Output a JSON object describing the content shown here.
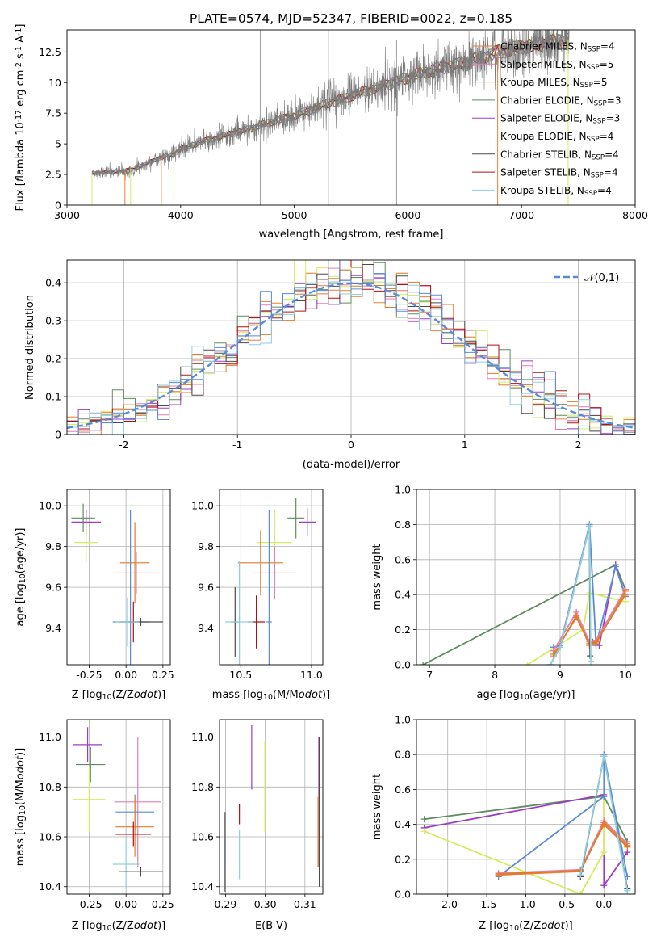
{
  "colors": {
    "chabrier_miles": "#ee7f33",
    "salpeter_miles": "#e47fb3",
    "kroupa_miles": "#de7c2a",
    "chabrier_elodie": "#5e8c5f",
    "salpeter_elodie": "#9a3cc4",
    "kroupa_elodie": "#d4ec5f",
    "chabrier_stelib": "#4a4a4a",
    "salpeter_stelib": "#b01010",
    "kroupa_stelib": "#8fcfe0",
    "blue": "#5b8ad6",
    "grid": "#b0b0b0"
  },
  "chart_data": [
    {
      "id": "spectrum",
      "type": "line",
      "title": "PLATE=0574, MJD=52347, FIBERID=0022, z=0.185",
      "xlabel": "wavelength [Angstrom, rest frame]",
      "ylabel": "Flux [$f_\\lambda 10^{-17}$ erg cm$^{-2}$ s$^{-1}$ A$^{-1}$]",
      "xlim": [
        3000,
        8000
      ],
      "ylim": [
        0,
        14.3
      ],
      "xticks": [
        3000,
        4000,
        5000,
        6000,
        7000,
        8000
      ],
      "yticks": [
        0.0,
        2.5,
        5.0,
        7.5,
        10.0,
        12.5
      ],
      "legend_position": "top-right",
      "observed_range": [
        3220,
        7420
      ],
      "continuum_points": [
        [
          3220,
          2.6
        ],
        [
          3500,
          2.8
        ],
        [
          3600,
          3.0
        ],
        [
          3800,
          3.8
        ],
        [
          3950,
          4.2
        ],
        [
          4000,
          4.6
        ],
        [
          4200,
          5.2
        ],
        [
          4400,
          5.7
        ],
        [
          4600,
          6.2
        ],
        [
          4800,
          6.8
        ],
        [
          5000,
          7.3
        ],
        [
          5200,
          8.0
        ],
        [
          5400,
          8.6
        ],
        [
          5600,
          9.2
        ],
        [
          5800,
          9.8
        ],
        [
          6000,
          10.4
        ],
        [
          6200,
          11.0
        ],
        [
          6500,
          11.6
        ],
        [
          6800,
          12.5
        ],
        [
          7000,
          12.9
        ],
        [
          7200,
          13.2
        ],
        [
          7420,
          13.5
        ]
      ],
      "series": [
        {
          "name": "Chabrier MILES, N$_{SSP}$=4",
          "color": "#ee7f33"
        },
        {
          "name": "Salpeter MILES, N$_{SSP}$=5",
          "color": "#e47fb3"
        },
        {
          "name": "Kroupa MILES, N$_{SSP}$=5",
          "color": "#de7c2a"
        },
        {
          "name": "Chabrier ELODIE, N$_{SSP}$=3",
          "color": "#5e8c5f"
        },
        {
          "name": "Salpeter ELODIE, N$_{SSP}$=3",
          "color": "#9a3cc4"
        },
        {
          "name": "Kroupa ELODIE, N$_{SSP}$=4",
          "color": "#d4ec5f"
        },
        {
          "name": "Chabrier STELIB, N$_{SSP}$=4",
          "color": "#4a4a4a"
        },
        {
          "name": "Salpeter STELIB, N$_{SSP}$=4",
          "color": "#b01010"
        },
        {
          "name": "Kroupa STELIB, N$_{SSP}$=4",
          "color": "#8fcfe0"
        }
      ]
    },
    {
      "id": "residuals",
      "type": "line",
      "xlabel": "(data-model)/error",
      "ylabel": "Normed distribution",
      "xlim": [
        -2.5,
        2.5
      ],
      "ylim": [
        0,
        0.46
      ],
      "xticks": [
        -2,
        -1,
        0,
        1,
        2
      ],
      "yticks": [
        0.0,
        0.1,
        0.2,
        0.3,
        0.4
      ],
      "legend_position": "top-right",
      "gaussian_label": "$\\mathcal{N}(0,1)$",
      "bin_width": 0.1,
      "histogram_series": 9
    },
    {
      "id": "z_age",
      "type": "scatter",
      "xlabel": "Z [log$_{10}$(Z/Z$_\\odot$)]",
      "ylabel": "age  [log$_{10}$(age/yr)]",
      "xlim": [
        -0.4,
        0.3
      ],
      "ylim": [
        9.22,
        10.08
      ],
      "xticks": [
        "-0.25",
        "0.00",
        "0.25"
      ],
      "yticks": [
        "9.4",
        "9.6",
        "9.8",
        "10.0"
      ],
      "points": [
        {
          "x": -0.29,
          "xerr": 0.08,
          "y": 9.94,
          "yerr": 0.07,
          "color": "#5e8c5f"
        },
        {
          "x": -0.27,
          "xerr": 0.1,
          "y": 9.92,
          "yerr": 0.06,
          "color": "#9a3cc4"
        },
        {
          "x": -0.27,
          "xerr": 0.08,
          "y": 9.82,
          "yerr": 0.1,
          "color": "#d4ec5f"
        },
        {
          "x": 0.06,
          "xerr": 0.1,
          "y": 9.72,
          "yerr": 0.2,
          "color": "#de7c2a"
        },
        {
          "x": 0.07,
          "xerr": 0.15,
          "y": 9.67,
          "yerr": 0.1,
          "color": "#e47fb3"
        },
        {
          "x": 0.03,
          "xerr": 0.12,
          "y": 9.43,
          "yerr": 0.55,
          "color": "#5b8ad6"
        },
        {
          "x": 0.1,
          "xerr": 0.15,
          "y": 9.43,
          "yerr": 0.02,
          "color": "#4a4a4a"
        },
        {
          "x": 0.05,
          "xerr": 0.04,
          "y": 9.43,
          "yerr": 0.1,
          "color": "#b01010"
        },
        {
          "x": 0.01,
          "xerr": 0.08,
          "y": 9.43,
          "yerr": 0.12,
          "color": "#8fcfe0"
        }
      ]
    },
    {
      "id": "mass_age",
      "type": "scatter",
      "xlabel": "mass [log$_{10}$(M/M$_\\odot$)]",
      "ylabel": "",
      "xlim": [
        10.35,
        11.08
      ],
      "ylim": [
        9.22,
        10.08
      ],
      "xticks": [
        "10.5",
        "11.0"
      ],
      "yticks": [
        "9.4",
        "9.6",
        "9.8",
        "10.0"
      ],
      "points": [
        {
          "x": 10.89,
          "xerr": 0.06,
          "y": 9.94,
          "yerr": 0.1,
          "color": "#5e8c5f"
        },
        {
          "x": 10.97,
          "xerr": 0.06,
          "y": 9.92,
          "yerr": 0.07,
          "color": "#9a3cc4"
        },
        {
          "x": 10.74,
          "xerr": 0.12,
          "y": 9.82,
          "yerr": 0.16,
          "color": "#d4ec5f"
        },
        {
          "x": 10.64,
          "xerr": 0.16,
          "y": 9.72,
          "yerr": 0.16,
          "color": "#de7c2a"
        },
        {
          "x": 10.74,
          "xerr": 0.15,
          "y": 9.67,
          "yerr": 0.13,
          "color": "#e47fb3"
        },
        {
          "x": 10.7,
          "xerr": 0.02,
          "y": 9.43,
          "yerr": 0.55,
          "color": "#5b8ad6"
        },
        {
          "x": 10.46,
          "xerr": 0.03,
          "y": 9.43,
          "yerr": 0.17,
          "color": "#4a4a4a"
        },
        {
          "x": 10.61,
          "xerr": 0.06,
          "y": 9.43,
          "yerr": 0.13,
          "color": "#b01010"
        },
        {
          "x": 10.49,
          "xerr": 0.1,
          "y": 9.43,
          "yerr": 0.3,
          "color": "#8fcfe0"
        }
      ]
    },
    {
      "id": "age_weight",
      "type": "line",
      "xlabel": "age  [log$_{10}$(age/yr)]",
      "ylabel": "mass weight",
      "xlim": [
        6.8,
        10.15
      ],
      "ylim": [
        0,
        1.0
      ],
      "xticks": [
        "7",
        "8",
        "9",
        "10"
      ],
      "yticks": [
        "0.0",
        "0.2",
        "0.4",
        "0.6",
        "0.8",
        "1.0"
      ],
      "series": [
        {
          "color": "#5e8c5f",
          "x": [
            6.9,
            9.85,
            10.0
          ],
          "y": [
            0.0,
            0.57,
            0.43
          ]
        },
        {
          "color": "#d4ec5f",
          "x": [
            8.5,
            9.35,
            9.45,
            10.0
          ],
          "y": [
            0.0,
            0.2,
            0.41,
            0.36
          ]
        },
        {
          "color": "#9a3cc4",
          "x": [
            9.5,
            9.6,
            9.85,
            10.0
          ],
          "y": [
            0.13,
            0.11,
            0.57,
            0.39
          ]
        },
        {
          "color": "#5b8ad6",
          "x": [
            8.9,
            9.0,
            9.45,
            9.55,
            9.85,
            10.0
          ],
          "y": [
            0.1,
            0.11,
            0.8,
            0.11,
            0.56,
            0.39
          ]
        },
        {
          "color": "#e47fb3",
          "x": [
            8.9,
            9.25,
            9.45,
            9.55,
            10.0
          ],
          "y": [
            0.08,
            0.3,
            0.13,
            0.14,
            0.43
          ]
        },
        {
          "color": "#ee7f33",
          "x": [
            8.9,
            9.25,
            9.45,
            9.55,
            10.0
          ],
          "y": [
            0.05,
            0.28,
            0.11,
            0.12,
            0.42
          ]
        },
        {
          "color": "#de7c2a",
          "x": [
            8.9,
            9.25,
            9.45,
            9.55,
            10.0
          ],
          "y": [
            0.06,
            0.27,
            0.12,
            0.13,
            0.4
          ]
        },
        {
          "color": "#4a4a4a",
          "x": [
            8.85,
            9.0,
            9.45,
            9.46
          ],
          "y": [
            0.0,
            0.1,
            0.79,
            0.05
          ]
        },
        {
          "color": "#8fcfe0",
          "x": [
            8.85,
            9.0,
            9.45,
            9.47
          ],
          "y": [
            0.0,
            0.1,
            0.79,
            0.02
          ]
        }
      ]
    },
    {
      "id": "z_mass",
      "type": "scatter",
      "xlabel": "Z [log$_{10}$(Z/Z$_\\odot$)]",
      "ylabel": "mass [log$_{10}$(M/M$_\\odot$)]",
      "xlim": [
        -0.4,
        0.3
      ],
      "ylim": [
        10.37,
        11.07
      ],
      "xticks": [
        "-0.25",
        "0.00",
        "0.25"
      ],
      "yticks": [
        "10.4",
        "10.6",
        "10.8",
        "11.0"
      ],
      "points": [
        {
          "x": -0.26,
          "xerr": 0.1,
          "y": 10.97,
          "yerr": 0.07,
          "color": "#9a3cc4"
        },
        {
          "x": -0.24,
          "xerr": 0.1,
          "y": 10.89,
          "yerr": 0.07,
          "color": "#5e8c5f"
        },
        {
          "x": -0.25,
          "xerr": 0.11,
          "y": 10.75,
          "yerr": 0.13,
          "color": "#d4ec5f"
        },
        {
          "x": 0.08,
          "xerr": 0.16,
          "y": 10.74,
          "yerr": 0.26,
          "color": "#e47fb3"
        },
        {
          "x": 0.06,
          "xerr": 0.13,
          "y": 10.7,
          "yerr": 0.07,
          "color": "#5b8ad6"
        },
        {
          "x": 0.06,
          "xerr": 0.13,
          "y": 10.64,
          "yerr": 0.12,
          "color": "#de7c2a"
        },
        {
          "x": 0.05,
          "xerr": 0.12,
          "y": 10.61,
          "yerr": 0.05,
          "color": "#b01010"
        },
        {
          "x": 0.0,
          "xerr": 0.09,
          "y": 10.49,
          "yerr": 0.1,
          "color": "#8fcfe0"
        },
        {
          "x": 0.1,
          "xerr": 0.15,
          "y": 10.46,
          "yerr": 0.02,
          "color": "#4a4a4a"
        }
      ]
    },
    {
      "id": "ebv_mass",
      "type": "scatter",
      "xlabel": "E(B-V)",
      "ylabel": "",
      "xlim": [
        0.2885,
        0.3145
      ],
      "ylim": [
        10.37,
        11.07
      ],
      "xticks": [
        "0.29",
        "0.30",
        "0.31"
      ],
      "yticks": [
        "10.4",
        "10.6",
        "10.8",
        "11.0"
      ],
      "points": [
        {
          "x": 0.2966,
          "y": 10.92,
          "yerr": 0.13,
          "color": "#9a3cc4"
        },
        {
          "x": 0.2999,
          "y": 10.8,
          "yerr": 0.18,
          "color": "#d4ec5f"
        },
        {
          "x": 0.2935,
          "y": 10.69,
          "yerr": 0.04,
          "color": "#b01010"
        },
        {
          "x": 0.2935,
          "y": 10.53,
          "yerr": 0.1,
          "color": "#8fcfe0"
        },
        {
          "x": 0.2899,
          "y": 10.54,
          "yerr": 0.16,
          "color": "#4a4a4a"
        },
        {
          "x": 0.3134,
          "y": 10.74,
          "yerr": 0.26,
          "color": "#e47fb3"
        },
        {
          "x": 0.3133,
          "y": 10.62,
          "yerr": 0.14,
          "color": "#de7c2a"
        },
        {
          "x": 0.3136,
          "y": 10.7,
          "yerr": 0.3,
          "color": "#4a4a4a"
        }
      ]
    },
    {
      "id": "z_weight",
      "type": "line",
      "xlabel": "Z [log$_{10}$(Z/Z$_\\odot$)]",
      "ylabel": "mass weight",
      "xlim": [
        -2.4,
        0.4
      ],
      "ylim": [
        0,
        1.0
      ],
      "xticks": [
        "-2.0",
        "-1.5",
        "-1.0",
        "-0.5",
        "0.0"
      ],
      "yticks": [
        "0.0",
        "0.2",
        "0.4",
        "0.6",
        "0.8",
        "1.0"
      ],
      "series": [
        {
          "color": "#5e8c5f",
          "x": [
            -2.3,
            0.0,
            0.3
          ],
          "y": [
            0.43,
            0.56,
            0.3
          ]
        },
        {
          "color": "#9a3cc4",
          "x": [
            -2.3,
            0.0,
            0.0,
            0.3
          ],
          "y": [
            0.38,
            0.57,
            0.05,
            0.24
          ]
        },
        {
          "color": "#d4ec5f",
          "x": [
            -2.3,
            -0.3,
            0.0,
            0.0
          ],
          "y": [
            0.36,
            0.0,
            0.24,
            0.56
          ]
        },
        {
          "color": "#5b8ad6",
          "x": [
            -1.35,
            0.0,
            0.0,
            0.3
          ],
          "y": [
            0.1,
            0.56,
            0.8,
            0.1
          ]
        },
        {
          "color": "#e47fb3",
          "x": [
            -1.35,
            -0.3,
            0.0,
            0.3
          ],
          "y": [
            0.12,
            0.14,
            0.42,
            0.29
          ]
        },
        {
          "color": "#ee7f33",
          "x": [
            -1.35,
            -0.3,
            0.0,
            0.3
          ],
          "y": [
            0.11,
            0.13,
            0.41,
            0.28
          ]
        },
        {
          "color": "#de7c2a",
          "x": [
            -1.35,
            -0.3,
            0.0,
            0.3
          ],
          "y": [
            0.115,
            0.135,
            0.4,
            0.27
          ]
        },
        {
          "color": "#4a4a4a",
          "x": [
            -0.3,
            0.0,
            0.3
          ],
          "y": [
            0.1,
            0.79,
            0.03
          ]
        },
        {
          "color": "#8fcfe0",
          "x": [
            -0.3,
            0.0,
            0.3
          ],
          "y": [
            0.11,
            0.79,
            0.02
          ]
        }
      ]
    }
  ]
}
